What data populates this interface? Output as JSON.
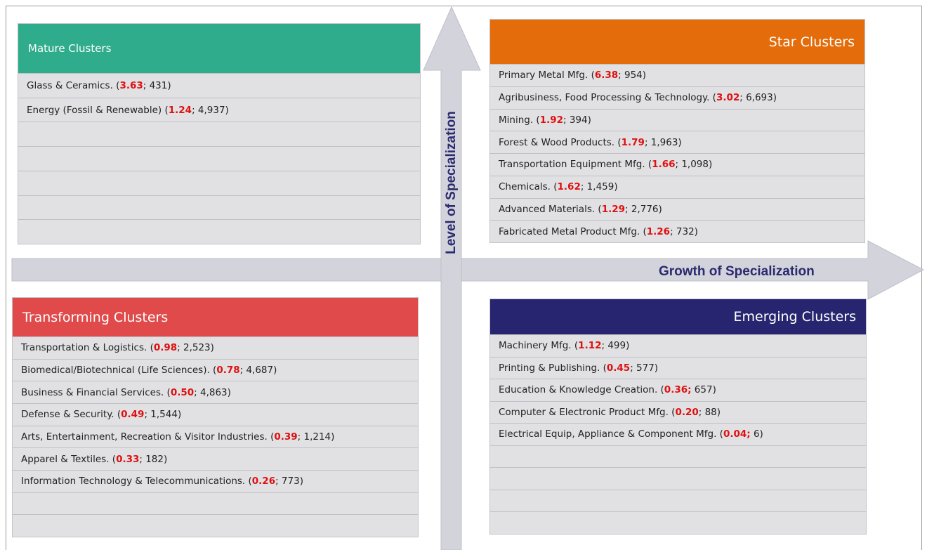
{
  "axes": {
    "vertical": "Level of Specialization",
    "horizontal": "Growth of Specialization"
  },
  "quadrants": [
    {
      "title": "Mature Clusters",
      "rows": [
        {
          "text": "Glass & Ceramics. (",
          "highlight": "3.63",
          "tail": "; 431)"
        },
        {
          "text": "Energy (Fossil & Renewable) (",
          "highlight": "1.24",
          "tail": "; 4,937)"
        }
      ]
    },
    {
      "title": "Star Clusters",
      "rows": [
        {
          "text": "Primary Metal Mfg. (",
          "highlight": "6.38",
          "tail": "; 954)"
        },
        {
          "text": "Agribusiness, Food Processing & Technology. (",
          "highlight": "3.02",
          "tail": "; 6,693)"
        },
        {
          "text": "Mining. (",
          "highlight": "1.92",
          "tail": "; 394)"
        },
        {
          "text": "Forest & Wood Products. (",
          "highlight": "1.79",
          "tail": "; 1,963)"
        },
        {
          "text": "Transportation Equipment Mfg. (",
          "highlight": "1.66",
          "tail": "; 1,098)"
        },
        {
          "text": "Chemicals. (",
          "highlight": "1.62",
          "tail": "; 1,459)"
        },
        {
          "text": "Advanced Materials. (",
          "highlight": "1.29",
          "tail": "; 2,776)"
        },
        {
          "text": "Fabricated Metal Product Mfg. (",
          "highlight": "1.26",
          "tail": "; 732)"
        }
      ]
    },
    {
      "title": "Transforming Clusters",
      "rows": [
        {
          "text": "Transportation & Logistics. (",
          "highlight": "0.98",
          "tail": "; 2,523)"
        },
        {
          "text": "Biomedical/Biotechnical (Life Sciences). (",
          "highlight": "0.78",
          "tail": "; 4,687)"
        },
        {
          "text": "Business & Financial Services. (",
          "highlight": "0.50",
          "tail": "; 4,863)"
        },
        {
          "text": "Defense & Security. (",
          "highlight": "0.49",
          "tail": "; 1,544)"
        },
        {
          "text": "Arts, Entertainment, Recreation & Visitor Industries. (",
          "highlight": "0.39",
          "tail": "; 1,214)"
        },
        {
          "text": "Apparel & Textiles. (",
          "highlight": "0.33",
          "tail": "; 182)"
        },
        {
          "text": "Information Technology & Telecommunications. (",
          "highlight": "0.26",
          "tail": "; 773)"
        }
      ]
    },
    {
      "title": "Emerging Clusters",
      "rows": [
        {
          "text": "Machinery Mfg. (",
          "highlight": "1.12",
          "tail": "; 499)"
        },
        {
          "text": "Printing & Publishing. (",
          "highlight": "0.45",
          "tail": "; 577)"
        },
        {
          "text": "Education & Knowledge Creation. (",
          "highlight": "0.36;",
          "tail": " 657)"
        },
        {
          "text": "Computer & Electronic Product Mfg. (",
          "highlight": "0.20",
          "tail": "; 88)"
        },
        {
          "text": "Electrical Equip, Appliance & Component Mfg. (",
          "highlight": "0.04;",
          "tail": " 6)"
        }
      ]
    }
  ]
}
